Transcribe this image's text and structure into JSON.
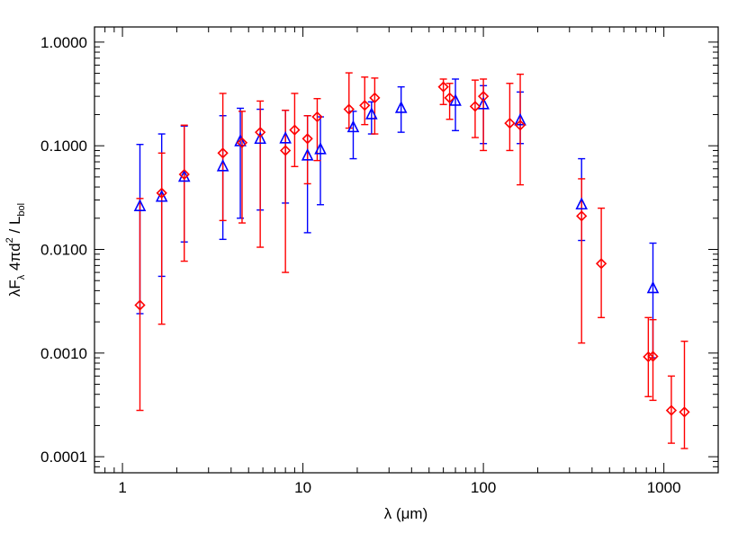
{
  "chart_data": {
    "type": "scatter",
    "title": "",
    "xlabel": "λ (μm)",
    "ylabel": {
      "parts": [
        "λF",
        "λ",
        " 4πd",
        "2",
        " / L",
        "bol"
      ]
    },
    "xscale": "log",
    "yscale": "log",
    "xlim": [
      0.7,
      2000
    ],
    "ylim": [
      7e-05,
      1.4
    ],
    "x_ticks": [
      {
        "value": 1,
        "label": "1"
      },
      {
        "value": 10,
        "label": "10"
      },
      {
        "value": 100,
        "label": "100"
      },
      {
        "value": 1000,
        "label": "1000"
      }
    ],
    "y_ticks": [
      {
        "value": 0.0001,
        "label": "0.0001"
      },
      {
        "value": 0.001,
        "label": "0.0010"
      },
      {
        "value": 0.01,
        "label": "0.0100"
      },
      {
        "value": 0.1,
        "label": "0.1000"
      },
      {
        "value": 1,
        "label": "1.0000"
      }
    ],
    "grid": false,
    "legend": "none",
    "series": [
      {
        "marker": "triangle",
        "color": "#0000ff",
        "points": [
          {
            "x": 1.25,
            "y": 0.026,
            "lo": 0.0024,
            "hi": 0.103
          },
          {
            "x": 1.65,
            "y": 0.032,
            "lo": 0.0055,
            "hi": 0.13
          },
          {
            "x": 2.2,
            "y": 0.05,
            "lo": 0.0118,
            "hi": 0.155
          },
          {
            "x": 3.6,
            "y": 0.063,
            "lo": 0.0125,
            "hi": 0.195
          },
          {
            "x": 4.5,
            "y": 0.11,
            "lo": 0.02,
            "hi": 0.23
          },
          {
            "x": 5.8,
            "y": 0.116,
            "lo": 0.024,
            "hi": 0.225
          },
          {
            "x": 8.0,
            "y": 0.117,
            "lo": 0.028,
            "hi": 0.22
          },
          {
            "x": 10.6,
            "y": 0.08,
            "lo": 0.0145,
            "hi": 0.195
          },
          {
            "x": 12.5,
            "y": 0.092,
            "lo": 0.027,
            "hi": 0.19
          },
          {
            "x": 19.0,
            "y": 0.15,
            "lo": 0.075,
            "hi": 0.215
          },
          {
            "x": 24.0,
            "y": 0.2,
            "lo": 0.13,
            "hi": 0.265
          },
          {
            "x": 35.0,
            "y": 0.23,
            "lo": 0.135,
            "hi": 0.37
          },
          {
            "x": 70.0,
            "y": 0.27,
            "lo": 0.14,
            "hi": 0.44
          },
          {
            "x": 100.0,
            "y": 0.25,
            "lo": 0.105,
            "hi": 0.38
          },
          {
            "x": 160.0,
            "y": 0.175,
            "lo": 0.105,
            "hi": 0.33
          },
          {
            "x": 350.0,
            "y": 0.027,
            "lo": 0.0122,
            "hi": 0.075
          },
          {
            "x": 870.0,
            "y": 0.0042,
            "lo": 0.0009,
            "hi": 0.0115
          }
        ]
      },
      {
        "marker": "diamond",
        "color": "#ff0000",
        "points": [
          {
            "x": 1.25,
            "y": 0.0029,
            "lo": 0.00028,
            "hi": 0.031
          },
          {
            "x": 1.65,
            "y": 0.035,
            "lo": 0.0019,
            "hi": 0.085
          },
          {
            "x": 2.2,
            "y": 0.053,
            "lo": 0.0077,
            "hi": 0.158
          },
          {
            "x": 3.6,
            "y": 0.085,
            "lo": 0.019,
            "hi": 0.32
          },
          {
            "x": 4.6,
            "y": 0.107,
            "lo": 0.018,
            "hi": 0.215
          },
          {
            "x": 5.8,
            "y": 0.135,
            "lo": 0.0105,
            "hi": 0.27
          },
          {
            "x": 8.0,
            "y": 0.09,
            "lo": 0.006,
            "hi": 0.22
          },
          {
            "x": 9.0,
            "y": 0.142,
            "lo": 0.063,
            "hi": 0.32
          },
          {
            "x": 10.6,
            "y": 0.117,
            "lo": 0.043,
            "hi": 0.195
          },
          {
            "x": 12.0,
            "y": 0.19,
            "lo": 0.072,
            "hi": 0.285
          },
          {
            "x": 18.0,
            "y": 0.225,
            "lo": 0.148,
            "hi": 0.505
          },
          {
            "x": 22.0,
            "y": 0.245,
            "lo": 0.16,
            "hi": 0.46
          },
          {
            "x": 25.0,
            "y": 0.29,
            "lo": 0.13,
            "hi": 0.45
          },
          {
            "x": 60.0,
            "y": 0.37,
            "lo": 0.25,
            "hi": 0.44
          },
          {
            "x": 65.0,
            "y": 0.29,
            "lo": 0.18,
            "hi": 0.4
          },
          {
            "x": 90.0,
            "y": 0.24,
            "lo": 0.12,
            "hi": 0.43
          },
          {
            "x": 100.0,
            "y": 0.3,
            "lo": 0.09,
            "hi": 0.44
          },
          {
            "x": 140.0,
            "y": 0.165,
            "lo": 0.09,
            "hi": 0.4
          },
          {
            "x": 160.0,
            "y": 0.158,
            "lo": 0.042,
            "hi": 0.49
          },
          {
            "x": 350.0,
            "y": 0.021,
            "lo": 0.00125,
            "hi": 0.048
          },
          {
            "x": 450.0,
            "y": 0.0073,
            "lo": 0.0022,
            "hi": 0.025
          },
          {
            "x": 820.0,
            "y": 0.00092,
            "lo": 0.00038,
            "hi": 0.0022
          },
          {
            "x": 870.0,
            "y": 0.00093,
            "lo": 0.00035,
            "hi": 0.0021
          },
          {
            "x": 1100.0,
            "y": 0.00028,
            "lo": 0.000135,
            "hi": 0.0006
          },
          {
            "x": 1300.0,
            "y": 0.00027,
            "lo": 0.00012,
            "hi": 0.0013
          }
        ]
      }
    ]
  }
}
